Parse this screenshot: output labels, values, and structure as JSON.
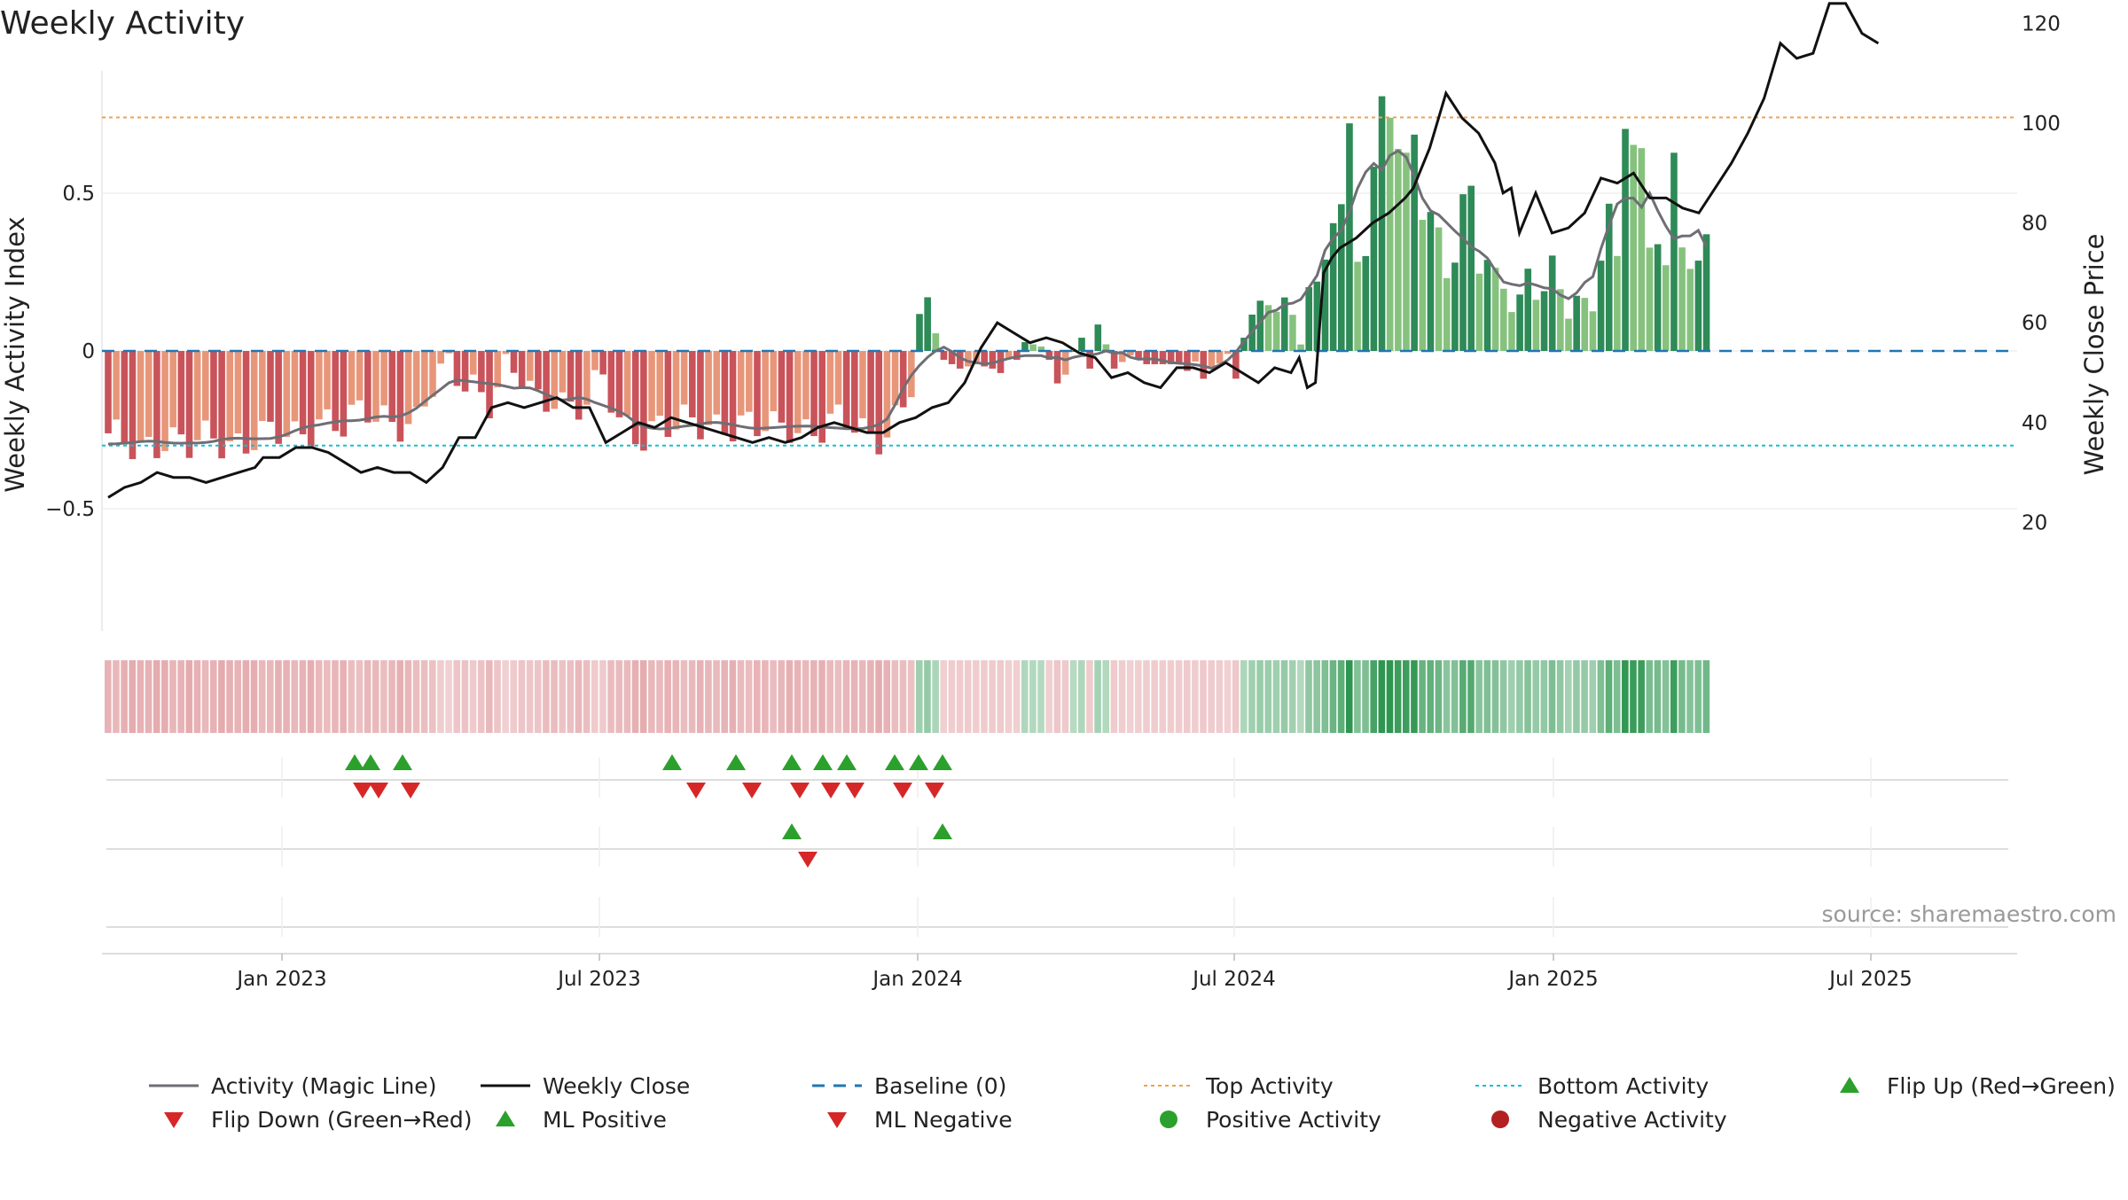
{
  "chart_data": {
    "type": "bar",
    "title": "Weekly Activity",
    "ylabel_left": "Weekly Activity Index",
    "ylabel_right": "Weekly Close Price",
    "y_left_ticks": [
      {
        "value": 0.5,
        "label": "0.5"
      },
      {
        "value": 0,
        "label": "0"
      },
      {
        "value": -0.5,
        "label": "−0.5"
      }
    ],
    "y_right_ticks": [
      {
        "value": 120,
        "label": "120"
      },
      {
        "value": 100,
        "label": "100"
      },
      {
        "value": 80,
        "label": "80"
      },
      {
        "value": 60,
        "label": "60"
      },
      {
        "value": 40,
        "label": "40"
      },
      {
        "value": 20,
        "label": "20"
      }
    ],
    "x_ticks": [
      "Jan 2023",
      "Jul 2023",
      "Jan 2024",
      "Jul 2024",
      "Jan 2025",
      "Jul 2025"
    ],
    "top_activity": 0.74,
    "bottom_activity": -0.3,
    "activity_anchors": [
      [
        0,
        -0.29
      ],
      [
        2,
        -0.3
      ],
      [
        4,
        -0.29
      ],
      [
        7,
        -0.27
      ],
      [
        10,
        -0.32
      ],
      [
        13,
        -0.27
      ],
      [
        17,
        -0.28
      ],
      [
        20,
        -0.28
      ],
      [
        23,
        -0.27
      ],
      [
        26,
        -0.2
      ],
      [
        29,
        -0.25
      ],
      [
        32,
        -0.2
      ],
      [
        34,
        -0.2
      ],
      [
        36,
        -0.21
      ],
      [
        38,
        -0.23
      ],
      [
        40,
        -0.13
      ],
      [
        42,
        -0.06
      ],
      [
        45,
        -0.09
      ],
      [
        47,
        -0.15
      ],
      [
        49,
        -0.08
      ],
      [
        51,
        -0.1
      ],
      [
        53,
        -0.16
      ],
      [
        55,
        -0.12
      ],
      [
        57,
        -0.17
      ],
      [
        59,
        -0.18
      ],
      [
        61,
        -0.1
      ],
      [
        63,
        -0.22
      ],
      [
        66,
        -0.25
      ],
      [
        68,
        -0.24
      ],
      [
        70,
        -0.26
      ],
      [
        72,
        -0.23
      ],
      [
        74,
        -0.22
      ],
      [
        76,
        -0.22
      ],
      [
        78,
        -0.24
      ],
      [
        80,
        -0.26
      ],
      [
        82,
        -0.25
      ],
      [
        84,
        -0.22
      ],
      [
        86,
        -0.24
      ],
      [
        88,
        -0.25
      ],
      [
        90,
        -0.24
      ],
      [
        92,
        -0.24
      ],
      [
        94,
        -0.26
      ],
      [
        96,
        -0.24
      ],
      [
        98,
        -0.18
      ],
      [
        99,
        -0.12
      ],
      [
        100,
        0.07
      ],
      [
        101,
        0.1
      ],
      [
        103,
        -0.02
      ],
      [
        105,
        -0.04
      ],
      [
        107,
        -0.03
      ],
      [
        109,
        -0.04
      ],
      [
        111,
        -0.06
      ],
      [
        113,
        0.02
      ],
      [
        115,
        0.01
      ],
      [
        117,
        -0.05
      ],
      [
        119,
        -0.07
      ],
      [
        120,
        0.03
      ],
      [
        121,
        -0.04
      ],
      [
        122,
        0.07
      ],
      [
        124,
        -0.04
      ],
      [
        126,
        -0.01
      ],
      [
        128,
        -0.03
      ],
      [
        130,
        -0.03
      ],
      [
        132,
        -0.03
      ],
      [
        134,
        -0.06
      ],
      [
        136,
        -0.04
      ],
      [
        138,
        -0.06
      ],
      [
        139,
        -0.08
      ],
      [
        140,
        0.03
      ],
      [
        141,
        0.05
      ],
      [
        143,
        0.2
      ],
      [
        144,
        0.16
      ],
      [
        146,
        0.14
      ],
      [
        147,
        0.08
      ],
      [
        148,
        0.18
      ],
      [
        149,
        0.15
      ],
      [
        151,
        0.42
      ],
      [
        152,
        0.42
      ],
      [
        153,
        0.7
      ],
      [
        154,
        0.35
      ],
      [
        155,
        0.35
      ],
      [
        156,
        0.56
      ],
      [
        157,
        0.81
      ],
      [
        158,
        0.78
      ],
      [
        159,
        0.61
      ],
      [
        160,
        0.55
      ],
      [
        161,
        0.68
      ],
      [
        162,
        0.45
      ],
      [
        163,
        0.42
      ],
      [
        164,
        0.38
      ],
      [
        165,
        0.3
      ],
      [
        166,
        0.33
      ],
      [
        167,
        0.46
      ],
      [
        168,
        0.5
      ],
      [
        169,
        0.27
      ],
      [
        170,
        0.26
      ],
      [
        171,
        0.19
      ],
      [
        172,
        0.2
      ],
      [
        173,
        0.18
      ],
      [
        174,
        0.18
      ],
      [
        175,
        0.25
      ],
      [
        176,
        0.22
      ],
      [
        177,
        0.23
      ],
      [
        178,
        0.25
      ],
      [
        179,
        0.15
      ],
      [
        180,
        0.12
      ],
      [
        181,
        0.16
      ],
      [
        182,
        0.11
      ],
      [
        183,
        0.14
      ],
      [
        184,
        0.36
      ],
      [
        185,
        0.48
      ],
      [
        186,
        0.28
      ],
      [
        187,
        0.74
      ],
      [
        188,
        0.68
      ],
      [
        189,
        0.58
      ],
      [
        190,
        0.27
      ],
      [
        191,
        0.36
      ],
      [
        192,
        0.28
      ],
      [
        193,
        0.59
      ],
      [
        194,
        0.35
      ],
      [
        195,
        0.34
      ],
      [
        196,
        0.3
      ],
      [
        197,
        0.33
      ]
    ],
    "close_anchors": [
      [
        0,
        25
      ],
      [
        2,
        27
      ],
      [
        4,
        28
      ],
      [
        6,
        30
      ],
      [
        8,
        29
      ],
      [
        10,
        29
      ],
      [
        12,
        28
      ],
      [
        14,
        29
      ],
      [
        16,
        30
      ],
      [
        18,
        31
      ],
      [
        19,
        33
      ],
      [
        21,
        33
      ],
      [
        23,
        35
      ],
      [
        25,
        35
      ],
      [
        27,
        34
      ],
      [
        29,
        32
      ],
      [
        31,
        30
      ],
      [
        33,
        31
      ],
      [
        35,
        30
      ],
      [
        37,
        30
      ],
      [
        39,
        28
      ],
      [
        41,
        31
      ],
      [
        43,
        37
      ],
      [
        45,
        37
      ],
      [
        47,
        43
      ],
      [
        49,
        44
      ],
      [
        51,
        43
      ],
      [
        53,
        44
      ],
      [
        55,
        45
      ],
      [
        57,
        43
      ],
      [
        59,
        43
      ],
      [
        61,
        36
      ],
      [
        63,
        38
      ],
      [
        65,
        40
      ],
      [
        67,
        39
      ],
      [
        69,
        41
      ],
      [
        71,
        40
      ],
      [
        73,
        39
      ],
      [
        75,
        38
      ],
      [
        77,
        37
      ],
      [
        79,
        36
      ],
      [
        81,
        37
      ],
      [
        83,
        36
      ],
      [
        85,
        37
      ],
      [
        87,
        39
      ],
      [
        89,
        40
      ],
      [
        91,
        39
      ],
      [
        93,
        38
      ],
      [
        95,
        38
      ],
      [
        97,
        40
      ],
      [
        99,
        41
      ],
      [
        101,
        43
      ],
      [
        103,
        44
      ],
      [
        105,
        48
      ],
      [
        107,
        55
      ],
      [
        109,
        60
      ],
      [
        111,
        58
      ],
      [
        113,
        56
      ],
      [
        115,
        57
      ],
      [
        117,
        56
      ],
      [
        119,
        54
      ],
      [
        121,
        53
      ],
      [
        123,
        49
      ],
      [
        125,
        50
      ],
      [
        127,
        48
      ],
      [
        129,
        47
      ],
      [
        131,
        51
      ],
      [
        133,
        51
      ],
      [
        135,
        50
      ],
      [
        137,
        52
      ],
      [
        139,
        50
      ],
      [
        141,
        48
      ],
      [
        143,
        51
      ],
      [
        145,
        50
      ],
      [
        146,
        53
      ],
      [
        147,
        47
      ],
      [
        148,
        48
      ],
      [
        149,
        70
      ],
      [
        150,
        73
      ],
      [
        151,
        75
      ],
      [
        153,
        77
      ],
      [
        155,
        80
      ],
      [
        157,
        82
      ],
      [
        159,
        85
      ],
      [
        160,
        87
      ],
      [
        162,
        95
      ],
      [
        164,
        106
      ],
      [
        166,
        101
      ],
      [
        168,
        98
      ],
      [
        170,
        92
      ],
      [
        171,
        86
      ],
      [
        172,
        87
      ],
      [
        173,
        78
      ],
      [
        175,
        86
      ],
      [
        177,
        78
      ],
      [
        179,
        79
      ],
      [
        181,
        82
      ],
      [
        183,
        89
      ],
      [
        185,
        88
      ],
      [
        187,
        90
      ],
      [
        189,
        85
      ],
      [
        191,
        85
      ],
      [
        193,
        83
      ],
      [
        195,
        82
      ],
      [
        197,
        87
      ],
      [
        199,
        92
      ],
      [
        201,
        98
      ],
      [
        203,
        105
      ],
      [
        205,
        116
      ],
      [
        207,
        113
      ],
      [
        209,
        114
      ],
      [
        211,
        124
      ],
      [
        213,
        124
      ],
      [
        215,
        118
      ],
      [
        217,
        116
      ]
    ],
    "flip_up_markers": [
      {
        "row": 1,
        "x": 400
      },
      {
        "row": 1,
        "x": 418
      },
      {
        "row": 1,
        "x": 454
      },
      {
        "row": 1,
        "x": 758
      },
      {
        "row": 1,
        "x": 830
      },
      {
        "row": 1,
        "x": 893
      },
      {
        "row": 1,
        "x": 928
      },
      {
        "row": 1,
        "x": 955
      },
      {
        "row": 1,
        "x": 1009
      },
      {
        "row": 1,
        "x": 1036
      },
      {
        "row": 1,
        "x": 1063
      }
    ],
    "flip_down_markers": [
      {
        "row": 1,
        "x": 409
      },
      {
        "row": 1,
        "x": 427
      },
      {
        "row": 1,
        "x": 463
      },
      {
        "row": 1,
        "x": 785
      },
      {
        "row": 1,
        "x": 848
      },
      {
        "row": 1,
        "x": 902
      },
      {
        "row": 1,
        "x": 937
      },
      {
        "row": 1,
        "x": 964
      },
      {
        "row": 1,
        "x": 1018
      },
      {
        "row": 1,
        "x": 1054
      }
    ],
    "ml_positive_markers": [
      {
        "row": 2,
        "x": 893
      },
      {
        "row": 2,
        "x": 1063
      }
    ],
    "ml_negative_markers": [
      {
        "row": 2,
        "x": 911
      }
    ],
    "legend": [
      {
        "label": "Activity (Magic Line)",
        "symbol": "line",
        "color": "#6e6e74"
      },
      {
        "label": "Weekly Close",
        "symbol": "line",
        "color": "#111111"
      },
      {
        "label": "Baseline (0)",
        "symbol": "dash",
        "color": "#1f77b4"
      },
      {
        "label": "Top Activity",
        "symbol": "dot-line",
        "color": "#f0a050"
      },
      {
        "label": "Bottom Activity",
        "symbol": "dot-line",
        "color": "#17becf"
      },
      {
        "label": "Flip Up (Red→Green)",
        "symbol": "triangle-up",
        "color": "#2ca02c"
      },
      {
        "label": "Flip Down (Green→Red)",
        "symbol": "triangle-down",
        "color": "#d62728"
      },
      {
        "label": "ML Positive",
        "symbol": "triangle-up",
        "color": "#2ca02c"
      },
      {
        "label": "ML Negative",
        "symbol": "triangle-down",
        "color": "#d62728"
      },
      {
        "label": "Positive Activity",
        "symbol": "circle",
        "color": "#2ca02c"
      },
      {
        "label": "Negative Activity",
        "symbol": "circle",
        "color": "#b22222"
      }
    ],
    "source": "source: sharemaestro.com",
    "colors": {
      "neg_dark": "#c9535a",
      "neg_light": "#e8967a",
      "pos_dark": "#2e8a57",
      "pos_light": "#86c27e",
      "magic_line": "#6e6e74",
      "close": "#111111",
      "baseline": "#1f77b4",
      "top": "#f0a050",
      "bottom": "#17becf"
    }
  }
}
